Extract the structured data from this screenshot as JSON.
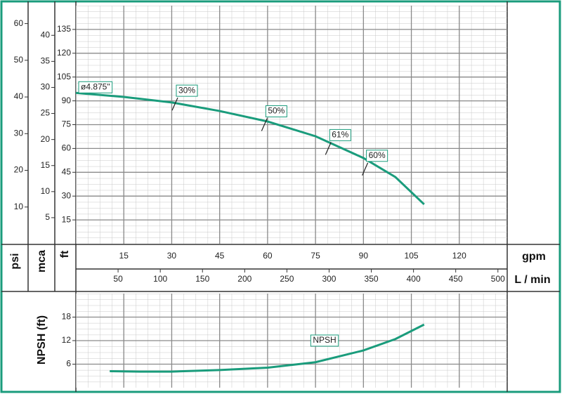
{
  "chart_data": [
    {
      "type": "line",
      "xlim": [
        0,
        135
      ],
      "xticks": [
        15,
        30,
        45,
        60,
        75,
        90,
        105,
        120
      ],
      "xlabel": "gpm",
      "ylim": [
        0,
        150
      ],
      "yticks": [
        15,
        30,
        45,
        60,
        75,
        90,
        105,
        120,
        135
      ],
      "ylabel": "ft",
      "secondary_y_axes": [
        {
          "label": "psi",
          "lim": [
            0,
            64.9
          ],
          "ticks": [
            10,
            20,
            30,
            40,
            50,
            60
          ]
        },
        {
          "label": "mca",
          "lim": [
            0,
            45.7
          ],
          "ticks": [
            5,
            10,
            15,
            20,
            25,
            30,
            35,
            40
          ]
        }
      ],
      "secondary_x_axis": {
        "label": "L / min",
        "lim": [
          0,
          511
        ],
        "ticks": [
          50,
          100,
          150,
          200,
          250,
          300,
          350,
          400,
          450,
          500
        ]
      },
      "x": [
        0,
        15,
        30,
        45,
        60,
        75,
        90,
        100,
        109
      ],
      "series": [
        {
          "name": "ø4.875\"",
          "color": "#1a9c7c",
          "values": [
            95,
            92.5,
            89,
            83.6,
            77,
            67.7,
            54,
            42,
            24.8
          ]
        }
      ],
      "annotations": [
        {
          "text": "30%",
          "x": 31,
          "y": 88
        },
        {
          "text": "50%",
          "x": 59,
          "y": 75
        },
        {
          "text": "61%",
          "x": 79,
          "y": 60
        },
        {
          "text": "60%",
          "x": 90.5,
          "y": 47
        }
      ],
      "grid": true
    },
    {
      "type": "line",
      "xlim": [
        0,
        135
      ],
      "ylim": [
        0,
        24
      ],
      "yticks": [
        6,
        12,
        18
      ],
      "ylabel": "NPSH (ft)",
      "x": [
        10.6,
        20,
        30,
        45,
        60,
        75,
        90,
        100,
        109
      ],
      "series": [
        {
          "name": "NPSH",
          "color": "#1a9c7c",
          "values": [
            4.2,
            4.1,
            4.1,
            4.5,
            5.1,
            6.5,
            9.5,
            12.4,
            16.1
          ]
        }
      ],
      "grid": true
    }
  ]
}
